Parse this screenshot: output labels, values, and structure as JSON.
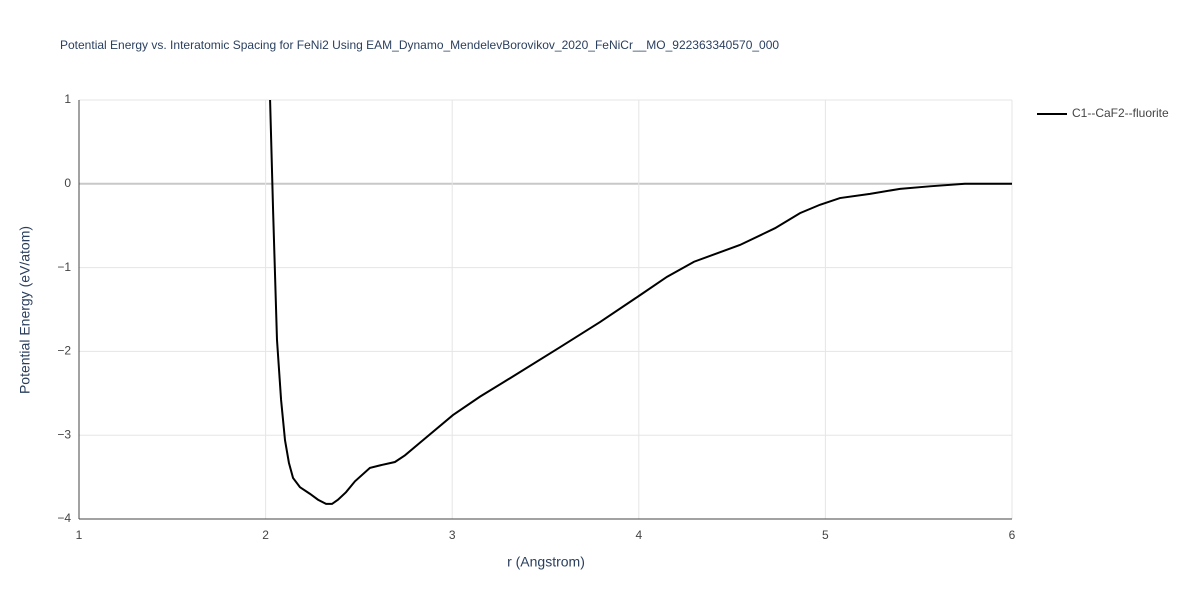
{
  "chart_data": {
    "type": "line",
    "title": "Potential Energy vs. Interatomic Spacing for FeNi2 Using EAM_Dynamo_MendelevBorovikov_2020_FeNiCr__MO_922363340570_000",
    "x_label": "r (Angstrom)",
    "y_label": "Potential Energy (eV/atom)",
    "x": [
      2.024,
      2.04,
      2.061,
      2.083,
      2.104,
      2.125,
      2.147,
      2.184,
      2.238,
      2.281,
      2.324,
      2.356,
      2.388,
      2.431,
      2.479,
      2.559,
      2.613,
      2.693,
      2.747,
      2.827,
      3.004,
      3.149,
      3.31,
      3.578,
      3.792,
      4.006,
      4.151,
      4.296,
      4.542,
      4.73,
      4.864,
      4.971,
      5.078,
      5.239,
      5.4,
      5.56,
      5.748,
      6.0
    ],
    "series": [
      {
        "name": "C1--CaF2--fluorite",
        "color": "#000000",
        "values": [
          1.0,
          -0.31,
          -1.86,
          -2.58,
          -3.06,
          -3.33,
          -3.51,
          -3.62,
          -3.7,
          -3.77,
          -3.82,
          -3.82,
          -3.77,
          -3.68,
          -3.55,
          -3.39,
          -3.36,
          -3.32,
          -3.24,
          -3.09,
          -2.76,
          -2.54,
          -2.32,
          -1.95,
          -1.65,
          -1.33,
          -1.11,
          -0.93,
          -0.73,
          -0.53,
          -0.35,
          -0.25,
          -0.17,
          -0.12,
          -0.06,
          -0.03,
          0.0,
          0.0
        ]
      }
    ],
    "xlim": [
      1,
      6
    ],
    "xticks": [
      1,
      2,
      3,
      4,
      5,
      6
    ],
    "ylim": [
      -4,
      1
    ],
    "yticks": [
      {
        "value": -4,
        "label": "−4"
      },
      {
        "value": -3,
        "label": "−3"
      },
      {
        "value": -2,
        "label": "−2"
      },
      {
        "value": -1,
        "label": "−1"
      },
      0,
      1
    ],
    "grid": true,
    "legend": "right"
  }
}
